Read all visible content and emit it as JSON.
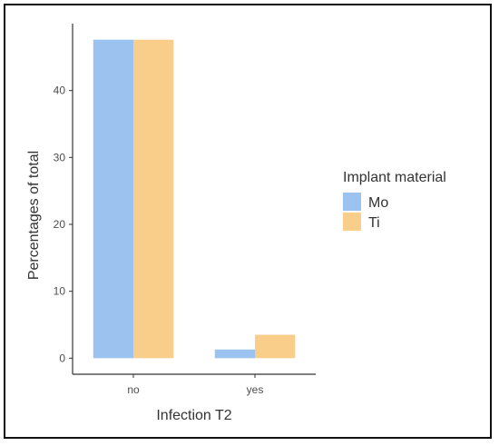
{
  "chart_data": {
    "type": "bar",
    "categories": [
      "no",
      "yes"
    ],
    "series": [
      {
        "name": "Mo",
        "color": "#9cc3f0",
        "values": [
          47.6,
          1.3
        ]
      },
      {
        "name": "Ti",
        "color": "#f9cd8a",
        "values": [
          47.6,
          3.5
        ]
      }
    ],
    "xlabel": "Infection T2",
    "ylabel": "Percentages of total",
    "ylim": [
      -2.4,
      50
    ],
    "yticks": [
      0,
      10,
      20,
      30,
      40
    ],
    "grid": false,
    "legend": {
      "title": "Implant material",
      "placement": "right"
    }
  }
}
